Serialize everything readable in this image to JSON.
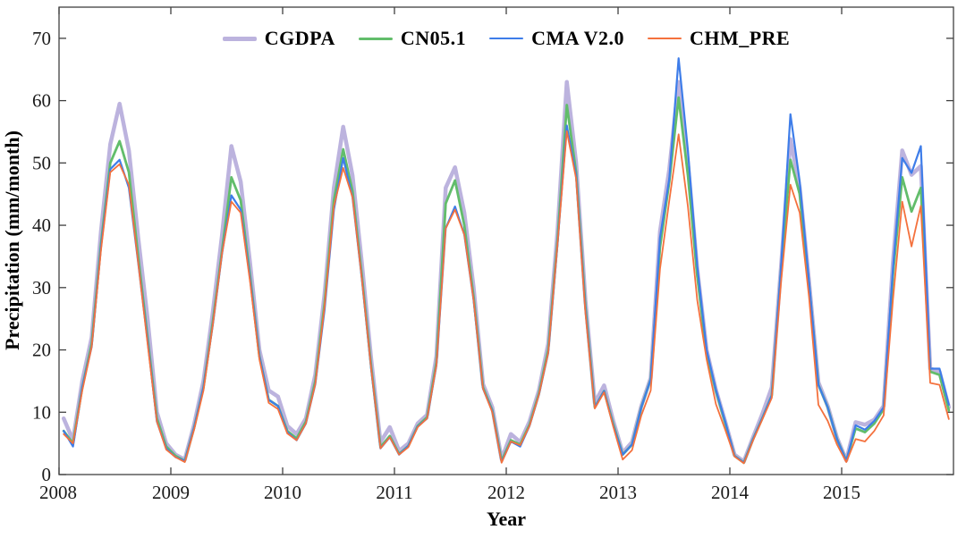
{
  "chart_data": {
    "type": "line",
    "title": "",
    "xlabel": "Year",
    "ylabel": "Precipitation (mm/month)",
    "x_range": [
      2008,
      2016
    ],
    "x_resolution": "monthly (96 points, Jan 2008 - Dec 2015)",
    "xticks": [
      2008,
      2009,
      2010,
      2011,
      2012,
      2013,
      2014,
      2015
    ],
    "ylim": [
      0,
      75
    ],
    "yticks": [
      0,
      10,
      20,
      30,
      40,
      50,
      60,
      70
    ],
    "grid": false,
    "legend_position": "top-center-inside",
    "axis_color": "#404040",
    "series": [
      {
        "name": "CGDPA",
        "color": "#bcb3de",
        "width": 4.5,
        "values": [
          9,
          5.5,
          15,
          22,
          39,
          53,
          59.5,
          52,
          38,
          25,
          10,
          5,
          3.2,
          2.4,
          8,
          15,
          26,
          38.5,
          52.7,
          47,
          34,
          20,
          13.5,
          12.5,
          7.8,
          6.5,
          9,
          16,
          29,
          46,
          55.8,
          48,
          34,
          18.5,
          5.2,
          7.6,
          3.8,
          5,
          8.2,
          9.6,
          19,
          46,
          49.3,
          42,
          30,
          14.5,
          10.8,
          2.5,
          6.5,
          5.2,
          8.5,
          13.5,
          21,
          39,
          63,
          50,
          28,
          11.5,
          14.3,
          8.5,
          3.5,
          5.2,
          11,
          15.5,
          39,
          49,
          63,
          50,
          33,
          20,
          13.6,
          8.5,
          3.2,
          2.1,
          6,
          9.8,
          14,
          33.5,
          53.8,
          46,
          31,
          14.8,
          11,
          5.9,
          2.3,
          8.4,
          8,
          8.8,
          11,
          34,
          52,
          48.1,
          49.5,
          17,
          16.5,
          10.8
        ]
      },
      {
        "name": "CN05.1",
        "color": "#62bd6b",
        "width": 2.8,
        "values": [
          7,
          5,
          14,
          21,
          37,
          50,
          53.5,
          48.5,
          35,
          22,
          9,
          4.5,
          3,
          2.2,
          7.5,
          14,
          24.5,
          36,
          47.7,
          44,
          32,
          19,
          12,
          11,
          7,
          5.8,
          8.5,
          15,
          27.5,
          44,
          52.2,
          45.5,
          32,
          17.3,
          4.4,
          6.2,
          3.3,
          4.6,
          7.8,
          9.2,
          18,
          43.5,
          47.2,
          40,
          28.5,
          14,
          10.3,
          2.2,
          5.5,
          4.8,
          8,
          13,
          20,
          37.5,
          59.3,
          48.5,
          27,
          10.8,
          13.4,
          8,
          3.2,
          4.8,
          10.8,
          15.3,
          36.5,
          47,
          60.5,
          48,
          32,
          19.5,
          13.4,
          8.3,
          3,
          1.9,
          5.7,
          9.1,
          12.7,
          33,
          50.5,
          45,
          30.5,
          14.4,
          10.8,
          5.7,
          2.2,
          7.4,
          6.8,
          8.2,
          10.5,
          32,
          47.7,
          42.2,
          46,
          16.5,
          16,
          10.3
        ]
      },
      {
        "name": "CMA V2.0",
        "color": "#3e7de9",
        "width": 2.2,
        "values": [
          7,
          4.5,
          14,
          20.5,
          36.5,
          49,
          50.5,
          46,
          34,
          21.5,
          8.5,
          4.2,
          2.8,
          2.2,
          7.5,
          14,
          24,
          35.5,
          44.8,
          42.5,
          31.5,
          19,
          12,
          11,
          6.8,
          5.5,
          8.2,
          14.5,
          26.5,
          42.5,
          50.8,
          44.5,
          31.5,
          17,
          4.2,
          6,
          3.2,
          4.6,
          7.7,
          9,
          17.5,
          39.5,
          43,
          38.5,
          28,
          13.8,
          10.2,
          2,
          5.3,
          4.5,
          7.8,
          12.8,
          19.5,
          37,
          56,
          48,
          26.5,
          10.8,
          13.4,
          7.8,
          3.2,
          4.8,
          10.8,
          15.3,
          38,
          47.5,
          66.8,
          52,
          33.5,
          20,
          13.6,
          8.5,
          3,
          1.9,
          5.7,
          9.1,
          12.7,
          33.5,
          57.8,
          47,
          31,
          14.4,
          10.8,
          5.7,
          2.2,
          7.9,
          7.2,
          8.6,
          10.8,
          33,
          50.8,
          48.4,
          52.7,
          17,
          17,
          11.2
        ]
      },
      {
        "name": "CHM_PRE",
        "color": "#f4713d",
        "width": 1.8,
        "values": [
          6.5,
          5,
          13.5,
          20.5,
          36,
          48.5,
          49.8,
          46.5,
          34,
          21,
          8.5,
          4,
          2.8,
          2,
          7.2,
          13.5,
          24,
          35.5,
          43.8,
          42,
          31,
          18.5,
          11.5,
          10.5,
          6.6,
          5.5,
          8.2,
          14.5,
          27,
          43,
          49.2,
          44.5,
          31.5,
          17,
          4.2,
          6,
          3.2,
          4.4,
          7.6,
          9,
          17.5,
          39.5,
          42.5,
          38.5,
          28,
          13.8,
          10,
          1.9,
          5.3,
          4.7,
          7.8,
          12.8,
          19.5,
          37,
          55.1,
          47.5,
          26,
          10.6,
          13.2,
          7.6,
          2.4,
          3.9,
          9.5,
          13.5,
          33,
          44,
          54.6,
          43,
          28,
          18.5,
          11.3,
          7.2,
          2.9,
          1.8,
          5.5,
          8.9,
          12.3,
          31,
          46.5,
          42,
          28.5,
          11.2,
          8.6,
          4.8,
          2,
          5.7,
          5.3,
          7,
          9.5,
          28,
          43.8,
          36.6,
          43.1,
          14.7,
          14.4,
          8.9
        ]
      }
    ]
  }
}
